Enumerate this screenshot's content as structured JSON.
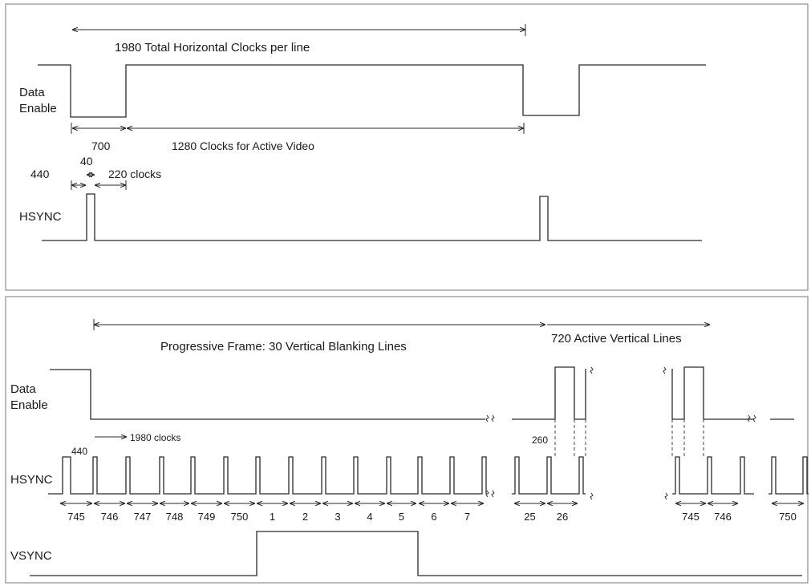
{
  "top_panel": {
    "total_label": "1980 Total Horizontal Clocks per line",
    "de_label_line1": "Data",
    "de_label_line2": "Enable",
    "blank_clocks": "700",
    "active_clocks": "1280 Clocks for Active Video",
    "front_porch": "440",
    "sync_width": "40",
    "back_porch": "220 clocks",
    "hsync_label": "HSYNC"
  },
  "bottom_panel": {
    "blanking_label": "Progressive Frame: 30 Vertical Blanking Lines",
    "active_label": "720 Active Vertical Lines",
    "de_label_line1": "Data",
    "de_label_line2": "Enable",
    "line_clocks": "1980 clocks",
    "front_porch": "440",
    "offset_260": "260",
    "hsync_label": "HSYNC",
    "vsync_label": "VSYNC",
    "line_numbers": [
      "745",
      "746",
      "747",
      "748",
      "749",
      "750",
      "1",
      "2",
      "3",
      "4",
      "5",
      "6",
      "7",
      "25",
      "26",
      "745",
      "746",
      "750"
    ]
  },
  "colors": {
    "line": "#2a2a2a",
    "text": "#1a1a1a",
    "background": "#ffffff"
  },
  "icons": {
    "arrow": "arrow-head",
    "break": "break-mark"
  }
}
